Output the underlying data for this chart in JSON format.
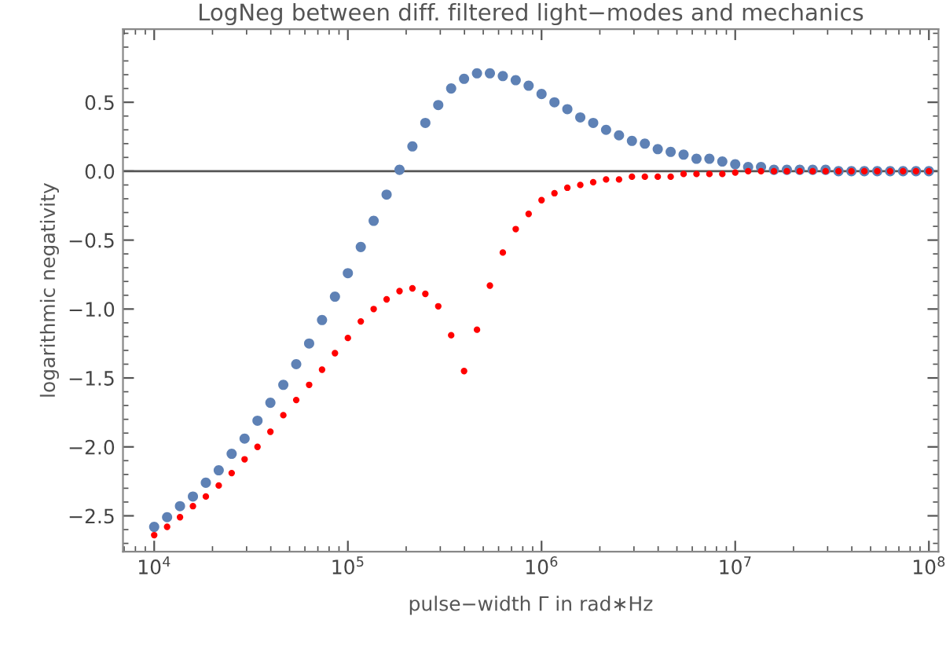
{
  "chart_data": {
    "type": "scatter",
    "title": "LogNeg between diff. filtered light−modes and mechanics",
    "xlabel": "pulse−width Γ in rad∗Hz",
    "ylabel": "logarithmic negativity",
    "x": [
      10000,
      11660,
      13590,
      15850,
      18480,
      21540,
      25120,
      29290,
      34150,
      39810,
      46420,
      54120,
      63100,
      73560,
      85770,
      100000,
      116600,
      135900,
      158500,
      184800,
      215400,
      251200,
      292900,
      341500,
      398100,
      464200,
      541200,
      631000,
      735600,
      857700,
      1000000,
      1166000,
      1359000,
      1585000,
      1848000,
      2154000,
      2512000,
      2929000,
      3415000,
      3981000,
      4642000,
      5412000,
      6310000,
      7356000,
      8577000,
      10000000,
      11660000,
      13590000,
      15850000,
      18480000,
      21540000,
      25120000,
      29290000,
      34150000,
      39810000,
      46420000,
      54120000,
      63100000,
      73560000,
      85770000,
      100000000
    ],
    "series": [
      {
        "color": "#5e81b5",
        "values": [
          -2.58,
          -2.51,
          -2.43,
          -2.36,
          -2.26,
          -2.17,
          -2.05,
          -1.94,
          -1.81,
          -1.68,
          -1.55,
          -1.4,
          -1.25,
          -1.08,
          -0.91,
          -0.74,
          -0.55,
          -0.36,
          -0.17,
          0.01,
          0.18,
          0.35,
          0.48,
          0.6,
          0.67,
          0.71,
          0.71,
          0.69,
          0.66,
          0.62,
          0.56,
          0.5,
          0.45,
          0.39,
          0.35,
          0.3,
          0.26,
          0.22,
          0.2,
          0.16,
          0.14,
          0.12,
          0.09,
          0.09,
          0.07,
          0.05,
          0.03,
          0.03,
          0.01,
          0.01,
          0.01,
          0.01,
          0.01,
          0.0,
          0.0,
          0.0,
          0.0,
          0.0,
          0.0,
          0.0,
          0.0
        ]
      },
      {
        "color": "#ff0000",
        "values": [
          -2.64,
          -2.58,
          -2.51,
          -2.43,
          -2.36,
          -2.28,
          -2.19,
          -2.09,
          -2.0,
          -1.89,
          -1.77,
          -1.66,
          -1.55,
          -1.44,
          -1.32,
          -1.21,
          -1.09,
          -1.0,
          -0.93,
          -0.87,
          -0.85,
          -0.89,
          -0.98,
          -1.19,
          -1.45,
          -1.15,
          -0.83,
          -0.59,
          -0.42,
          -0.31,
          -0.21,
          -0.16,
          -0.12,
          -0.1,
          -0.08,
          -0.06,
          -0.06,
          -0.04,
          -0.04,
          -0.04,
          -0.04,
          -0.02,
          -0.02,
          -0.02,
          -0.02,
          -0.01,
          0.0,
          0.0,
          0.0,
          0.0,
          0.0,
          0.0,
          0.0,
          0.0,
          0.0,
          0.0,
          0.0,
          0.0,
          0.0,
          0.0,
          0.0
        ]
      }
    ],
    "log": "x",
    "xlim": [
      6900,
      112000000
    ],
    "xticks": [
      {
        "value": 10000,
        "label": "10$^{4}$"
      },
      {
        "value": 100000,
        "label": "10$^{5}$"
      },
      {
        "value": 1000000,
        "label": "10$^{6}$"
      },
      {
        "value": 10000000,
        "label": "10$^{7}$"
      },
      {
        "value": 100000000,
        "label": "10$^{8}$"
      }
    ],
    "ylim": [
      -2.76,
      1.03
    ],
    "yticks": [
      {
        "value": -2.5,
        "label": "−2.5"
      },
      {
        "value": -2.0,
        "label": "−2.0"
      },
      {
        "value": -1.5,
        "label": "−1.5"
      },
      {
        "value": -1.0,
        "label": "−1.0"
      },
      {
        "value": -0.5,
        "label": "−0.5"
      },
      {
        "value": 0.0,
        "label": "0.0"
      },
      {
        "value": 0.5,
        "label": "0.5"
      }
    ],
    "ref_lines": [
      {
        "axis": "y",
        "value": 0,
        "color": "#555555"
      }
    ],
    "marker": "circle",
    "grid": false,
    "legend": false
  }
}
